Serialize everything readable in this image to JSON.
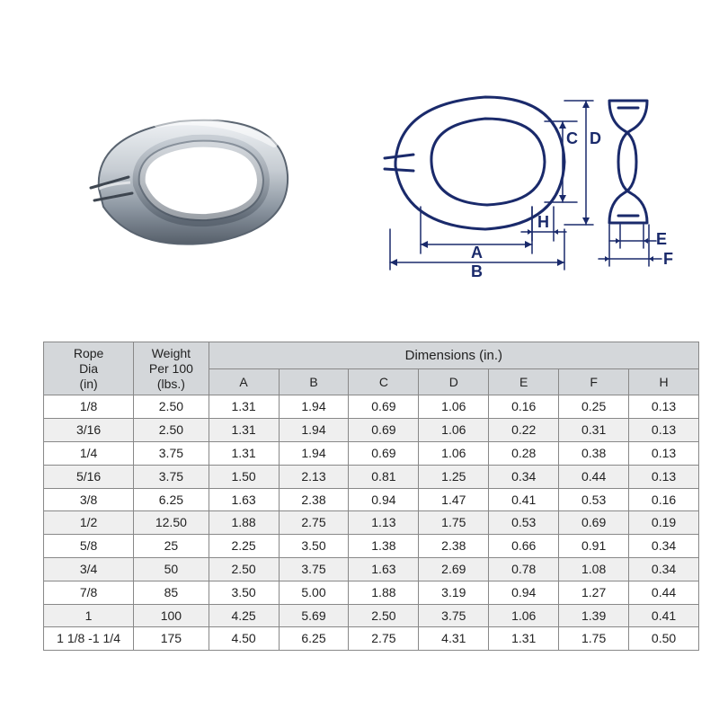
{
  "diagram": {
    "labels": {
      "A": "A",
      "B": "B",
      "C": "C",
      "D": "D",
      "E": "E",
      "F": "F",
      "H": "H"
    },
    "stroke": "#1a2a6b",
    "stroke_width": 3,
    "label_fontsize": 18,
    "label_fontweight": "bold"
  },
  "table": {
    "header": {
      "rope": "Rope\nDia\n(in)",
      "weight": "Weight\nPer 100\n(lbs.)",
      "dims": "Dimensions (in.)",
      "dim_cols": [
        "A",
        "B",
        "C",
        "D",
        "E",
        "F",
        "H"
      ]
    },
    "header_bg": "#d4d7da",
    "border_color": "#888888",
    "zebra_bg": "#efefef",
    "font_size": 14,
    "rows": [
      {
        "rope": "1/8",
        "weight": "2.50",
        "A": "1.31",
        "B": "1.94",
        "C": "0.69",
        "D": "1.06",
        "E": "0.16",
        "F": "0.25",
        "H": "0.13"
      },
      {
        "rope": "3/16",
        "weight": "2.50",
        "A": "1.31",
        "B": "1.94",
        "C": "0.69",
        "D": "1.06",
        "E": "0.22",
        "F": "0.31",
        "H": "0.13"
      },
      {
        "rope": "1/4",
        "weight": "3.75",
        "A": "1.31",
        "B": "1.94",
        "C": "0.69",
        "D": "1.06",
        "E": "0.28",
        "F": "0.38",
        "H": "0.13"
      },
      {
        "rope": "5/16",
        "weight": "3.75",
        "A": "1.50",
        "B": "2.13",
        "C": "0.81",
        "D": "1.25",
        "E": "0.34",
        "F": "0.44",
        "H": "0.13"
      },
      {
        "rope": "3/8",
        "weight": "6.25",
        "A": "1.63",
        "B": "2.38",
        "C": "0.94",
        "D": "1.47",
        "E": "0.41",
        "F": "0.53",
        "H": "0.16"
      },
      {
        "rope": "1/2",
        "weight": "12.50",
        "A": "1.88",
        "B": "2.75",
        "C": "1.13",
        "D": "1.75",
        "E": "0.53",
        "F": "0.69",
        "H": "0.19"
      },
      {
        "rope": "5/8",
        "weight": "25",
        "A": "2.25",
        "B": "3.50",
        "C": "1.38",
        "D": "2.38",
        "E": "0.66",
        "F": "0.91",
        "H": "0.34"
      },
      {
        "rope": "3/4",
        "weight": "50",
        "A": "2.50",
        "B": "3.75",
        "C": "1.63",
        "D": "2.69",
        "E": "0.78",
        "F": "1.08",
        "H": "0.34"
      },
      {
        "rope": "7/8",
        "weight": "85",
        "A": "3.50",
        "B": "5.00",
        "C": "1.88",
        "D": "3.19",
        "E": "0.94",
        "F": "1.27",
        "H": "0.44"
      },
      {
        "rope": "1",
        "weight": "100",
        "A": "4.25",
        "B": "5.69",
        "C": "2.50",
        "D": "3.75",
        "E": "1.06",
        "F": "1.39",
        "H": "0.41"
      },
      {
        "rope": "1 1/8 -1 1/4",
        "weight": "175",
        "A": "4.50",
        "B": "6.25",
        "C": "2.75",
        "D": "4.31",
        "E": "1.31",
        "F": "1.75",
        "H": "0.50"
      }
    ]
  },
  "photo": {
    "body_fill": "#c7cdd3",
    "highlight": "#e8ecef",
    "shadow": "#6e7884"
  }
}
